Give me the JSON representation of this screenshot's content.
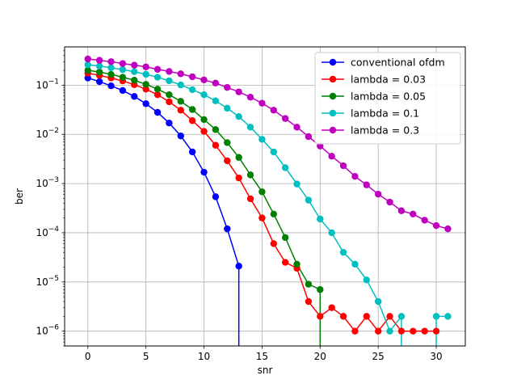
{
  "chart_data": {
    "type": "line",
    "xlabel": "snr",
    "ylabel": "ber",
    "xlim": [
      -2,
      32.5
    ],
    "ylim": [
      5e-07,
      0.6
    ],
    "yscale": "log",
    "grid": true,
    "legend_position": "top-right",
    "x_ticks": [
      0,
      5,
      10,
      15,
      20,
      25,
      30
    ],
    "y_ticks": [
      {
        "value": 1e-06,
        "base": "10",
        "exp": "−6"
      },
      {
        "value": 1e-05,
        "base": "10",
        "exp": "−5"
      },
      {
        "value": 0.0001,
        "base": "10",
        "exp": "−4"
      },
      {
        "value": 0.001,
        "base": "10",
        "exp": "−3"
      },
      {
        "value": 0.01,
        "base": "10",
        "exp": "−2"
      },
      {
        "value": 0.1,
        "base": "10",
        "exp": "−1"
      }
    ],
    "series": [
      {
        "name": "conventional ofdm",
        "color": "#0000ff",
        "points": [
          [
            0,
            0.14
          ],
          [
            1,
            0.118
          ],
          [
            2,
            0.097
          ],
          [
            3,
            0.078
          ],
          [
            4,
            0.059
          ],
          [
            5,
            0.042
          ],
          [
            6,
            0.028
          ],
          [
            7,
            0.017
          ],
          [
            8,
            0.0093
          ],
          [
            9,
            0.0044
          ],
          [
            10,
            0.0017
          ],
          [
            11,
            0.00054
          ],
          [
            12,
            0.00012
          ],
          [
            13,
            2.1e-05
          ],
          [
            13,
            1e-09
          ]
        ]
      },
      {
        "name": "lambda = 0.03",
        "color": "#ff0000",
        "points": [
          [
            0,
            0.175
          ],
          [
            1,
            0.158
          ],
          [
            2,
            0.14
          ],
          [
            3,
            0.122
          ],
          [
            4,
            0.102
          ],
          [
            5,
            0.083
          ],
          [
            6,
            0.064
          ],
          [
            7,
            0.046
          ],
          [
            8,
            0.031
          ],
          [
            9,
            0.019
          ],
          [
            10,
            0.0115
          ],
          [
            11,
            0.006
          ],
          [
            12,
            0.0029
          ],
          [
            13,
            0.0013
          ],
          [
            14,
            0.00049
          ],
          [
            15,
            0.0002
          ],
          [
            16,
            6e-05
          ],
          [
            17,
            2.5e-05
          ],
          [
            18,
            1.9e-05
          ],
          [
            19,
            4e-06
          ],
          [
            20,
            2e-06
          ],
          [
            21,
            3e-06
          ],
          [
            22,
            2e-06
          ],
          [
            23,
            1e-06
          ],
          [
            24,
            2e-06
          ],
          [
            25,
            1e-06
          ],
          [
            26,
            2e-06
          ],
          [
            27,
            1e-06
          ],
          [
            28,
            1e-06
          ],
          [
            29,
            1e-06
          ],
          [
            30,
            1e-06
          ]
        ]
      },
      {
        "name": "lambda = 0.05",
        "color": "#008000",
        "points": [
          [
            0,
            0.2
          ],
          [
            1,
            0.185
          ],
          [
            2,
            0.166
          ],
          [
            3,
            0.145
          ],
          [
            4,
            0.126
          ],
          [
            5,
            0.104
          ],
          [
            6,
            0.083
          ],
          [
            7,
            0.064
          ],
          [
            8,
            0.047
          ],
          [
            9,
            0.032
          ],
          [
            10,
            0.02
          ],
          [
            11,
            0.0125
          ],
          [
            12,
            0.0068
          ],
          [
            13,
            0.0034
          ],
          [
            14,
            0.0015
          ],
          [
            15,
            0.00068
          ],
          [
            16,
            0.00024
          ],
          [
            17,
            8e-05
          ],
          [
            18,
            2.3e-05
          ],
          [
            19,
            9e-06
          ],
          [
            20,
            7e-06
          ],
          [
            20,
            1e-09
          ]
        ]
      },
      {
        "name": "lambda = 0.1",
        "color": "#00bfbf",
        "points": [
          [
            0,
            0.26
          ],
          [
            1,
            0.245
          ],
          [
            2,
            0.226
          ],
          [
            3,
            0.207
          ],
          [
            4,
            0.188
          ],
          [
            5,
            0.166
          ],
          [
            6,
            0.145
          ],
          [
            7,
            0.123
          ],
          [
            8,
            0.101
          ],
          [
            9,
            0.081
          ],
          [
            10,
            0.064
          ],
          [
            11,
            0.048
          ],
          [
            12,
            0.034
          ],
          [
            13,
            0.023
          ],
          [
            14,
            0.014
          ],
          [
            15,
            0.0079
          ],
          [
            16,
            0.0044
          ],
          [
            17,
            0.0021
          ],
          [
            18,
            0.00098
          ],
          [
            19,
            0.00046
          ],
          [
            20,
            0.00019
          ],
          [
            21,
            0.0001
          ],
          [
            22,
            4e-05
          ],
          [
            23,
            2.3e-05
          ],
          [
            24,
            1.1e-05
          ],
          [
            25,
            4e-06
          ],
          [
            26,
            1e-06
          ],
          [
            27,
            2e-06
          ],
          [
            27,
            1e-09
          ]
        ]
      },
      {
        "name": "lambda = 0.3",
        "color": "#bf00bf",
        "points": [
          [
            0,
            0.34
          ],
          [
            1,
            0.32
          ],
          [
            2,
            0.3
          ],
          [
            3,
            0.275
          ],
          [
            4,
            0.255
          ],
          [
            5,
            0.235
          ],
          [
            6,
            0.21
          ],
          [
            7,
            0.19
          ],
          [
            8,
            0.17
          ],
          [
            9,
            0.148
          ],
          [
            10,
            0.128
          ],
          [
            11,
            0.11
          ],
          [
            12,
            0.09
          ],
          [
            13,
            0.073
          ],
          [
            14,
            0.057
          ],
          [
            15,
            0.043
          ],
          [
            16,
            0.031
          ],
          [
            17,
            0.021
          ],
          [
            18,
            0.014
          ],
          [
            19,
            0.009
          ],
          [
            20,
            0.0058
          ],
          [
            21,
            0.0036
          ],
          [
            22,
            0.0023
          ],
          [
            23,
            0.0014
          ],
          [
            24,
            0.00094
          ],
          [
            25,
            0.00061
          ],
          [
            26,
            0.00042
          ],
          [
            27,
            0.00028
          ],
          [
            28,
            0.00024
          ],
          [
            29,
            0.00018
          ],
          [
            30,
            0.00014
          ],
          [
            31,
            0.00012
          ]
        ]
      }
    ],
    "extra_segments": [
      {
        "series": "lambda = 0.1",
        "color": "#00bfbf",
        "points": [
          [
            30,
            1e-09
          ],
          [
            30,
            2e-06
          ],
          [
            31,
            2e-06
          ]
        ]
      }
    ]
  }
}
